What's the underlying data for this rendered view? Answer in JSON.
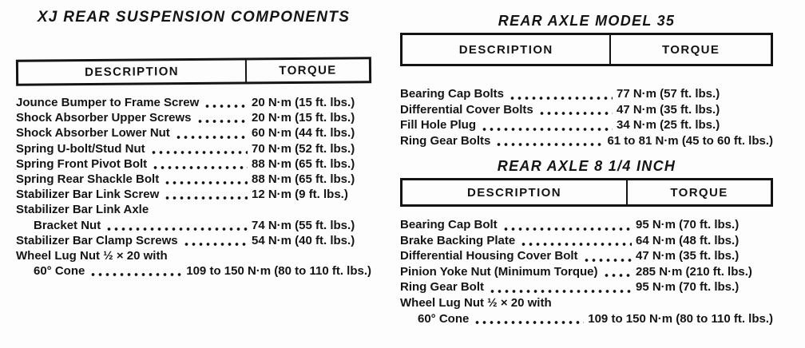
{
  "page": {
    "ink_color": "#141414",
    "paper_color": "#fdfdfd"
  },
  "suspension_table": {
    "title": "XJ REAR SUSPENSION COMPONENTS",
    "headers": {
      "description": "DESCRIPTION",
      "torque": "TORQUE"
    },
    "rows": [
      {
        "desc": "Jounce Bumper to Frame Screw",
        "torque": "20 N·m (15 ft. lbs.)"
      },
      {
        "desc": "Shock Absorber Upper Screws",
        "torque": "20 N·m (15 ft. lbs.)"
      },
      {
        "desc": "Shock Absorber Lower Nut",
        "torque": "60 N·m (44 ft. lbs.)"
      },
      {
        "desc": "Spring U-bolt/Stud Nut",
        "torque": "70 N·m (52 ft. lbs.)"
      },
      {
        "desc": "Spring Front Pivot Bolt",
        "torque": "88 N·m (65 ft. lbs.)"
      },
      {
        "desc": "Spring Rear Shackle Bolt",
        "torque": "88 N·m (65 ft. lbs.)"
      },
      {
        "desc": "Stabilizer Bar Link Screw",
        "torque": "12 N·m (9 ft. lbs.)"
      },
      {
        "desc": "Stabilizer Bar Link Axle",
        "torque": ""
      },
      {
        "desc": "Bracket Nut",
        "torque": "74 N·m (55 ft. lbs.)",
        "indent": true
      },
      {
        "desc": "Stabilizer Bar Clamp Screws",
        "torque": "54 N·m (40 ft. lbs.)"
      },
      {
        "desc": "Wheel Lug Nut ½ × 20 with",
        "torque": ""
      },
      {
        "desc": "60° Cone",
        "torque": "109 to 150 N·m (80 to 110 ft. lbs.)",
        "indent": true
      }
    ]
  },
  "axle35_table": {
    "title": "REAR AXLE MODEL 35",
    "headers": {
      "description": "DESCRIPTION",
      "torque": "TORQUE"
    },
    "rows": [
      {
        "desc": "Bearing Cap Bolts",
        "torque": "77 N·m (57 ft. lbs.)"
      },
      {
        "desc": "Differential Cover Bolts",
        "torque": "47 N·m (35 ft. lbs.)"
      },
      {
        "desc": "Fill Hole Plug",
        "torque": "34 N·m (25 ft. lbs.)"
      },
      {
        "desc": "Ring Gear Bolts",
        "torque": "61 to 81 N·m (45 to 60 ft. lbs.)"
      }
    ]
  },
  "axle814_table": {
    "title": "REAR AXLE 8 1/4 INCH",
    "headers": {
      "description": "DESCRIPTION",
      "torque": "TORQUE"
    },
    "rows": [
      {
        "desc": "Bearing Cap Bolt",
        "torque": "95 N·m (70 ft. lbs.)"
      },
      {
        "desc": "Brake Backing Plate",
        "torque": "64 N·m (48 ft. lbs.)"
      },
      {
        "desc": "Differential Housing Cover Bolt",
        "torque": "47 N·m (35 ft. lbs.)"
      },
      {
        "desc": "Pinion Yoke Nut (Minimum Torque)",
        "torque": "285 N·m (210 ft. lbs.)"
      },
      {
        "desc": "Ring Gear Bolt",
        "torque": "95 N·m (70 ft. lbs.)"
      },
      {
        "desc": "Wheel Lug Nut ½ × 20 with",
        "torque": ""
      },
      {
        "desc": "60° Cone",
        "torque": "109 to 150 N·m (80 to 110 ft. lbs.)",
        "indent": true
      }
    ]
  }
}
